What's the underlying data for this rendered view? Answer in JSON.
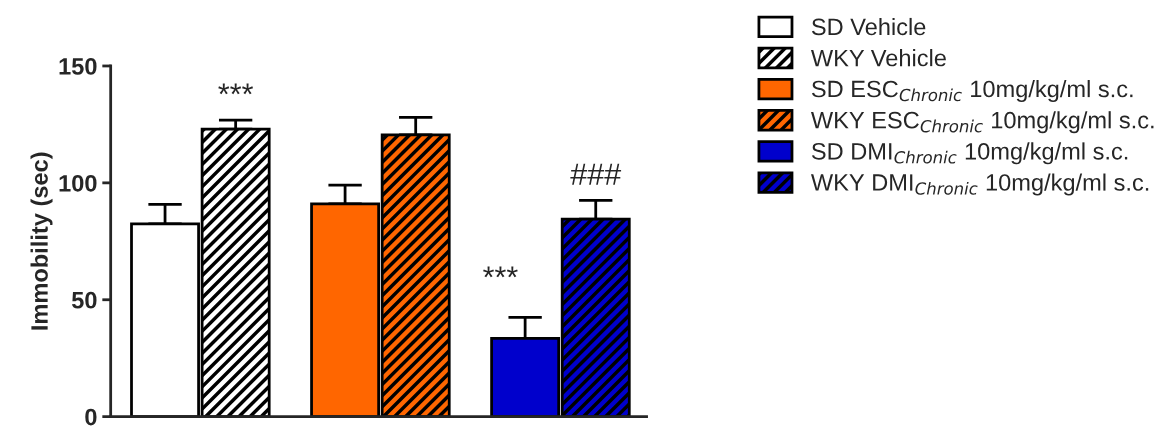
{
  "chart_data": {
    "type": "bar",
    "ylabel": "Immobility (sec)",
    "categories": [
      null,
      null,
      null,
      null,
      null,
      null
    ],
    "series": [
      {
        "name": "SD Vehicle",
        "color": "#ffffff",
        "values": [
          82.5,
          null,
          null,
          null,
          null,
          null
        ],
        "errors": [
          8.3,
          null,
          null,
          null,
          null,
          null
        ]
      },
      {
        "name": "WKY Vehicle",
        "color": "#ffffff",
        "values": [
          null,
          123,
          null,
          null,
          null,
          null
        ],
        "errors": [
          null,
          3.8,
          null,
          null,
          null,
          null
        ]
      },
      {
        "name": "SD ESC$_{Chronic}$ 10mg/kg/ml s.c.",
        "color": "#ff6600",
        "values": [
          null,
          null,
          91,
          null,
          null,
          null
        ],
        "errors": [
          null,
          null,
          8,
          null,
          null,
          null
        ]
      },
      {
        "name": "WKY ESC$_{Chronic}$ 10mg/kg/ml s.c.",
        "color": "#ff6600",
        "values": [
          null,
          null,
          null,
          120.5,
          null,
          null
        ],
        "errors": [
          null,
          null,
          null,
          7.5,
          null,
          null
        ]
      },
      {
        "name": "SD DMI$_{Chronic}$ 10mg/kg/ml s.c.",
        "color": "#0000cc",
        "values": [
          null,
          null,
          null,
          null,
          33.5,
          null
        ],
        "errors": [
          null,
          null,
          null,
          null,
          9,
          null
        ]
      },
      {
        "name": "WKY DMI$_{Chronic}$ 10mg/kg/ml s.c.",
        "color": "#0000cc",
        "values": [
          null,
          null,
          null,
          null,
          null,
          84.5
        ],
        "errors": [
          null,
          null,
          null,
          null,
          null,
          8
        ]
      }
    ],
    "annotations": [
      "***",
      "***",
      "###"
    ],
    "ylim": [
      0,
      150
    ],
    "yticks": [
      0,
      50,
      100,
      150
    ],
    "grid": false,
    "legend": "right"
  }
}
